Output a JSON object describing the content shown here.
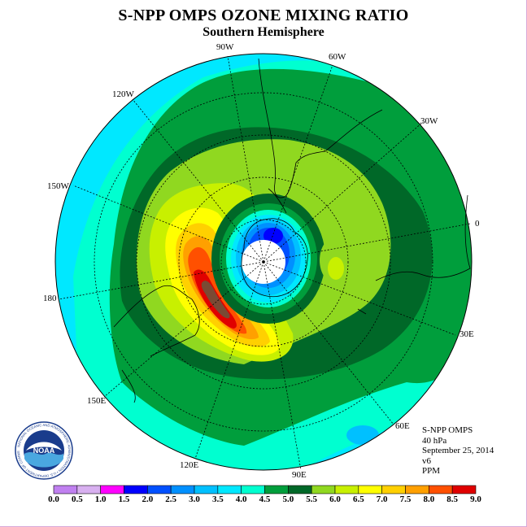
{
  "header": {
    "title": "S-NPP OMPS OZONE MIXING RATIO",
    "subtitle": "Southern Hemisphere"
  },
  "map": {
    "projection": "south-polar-stereographic",
    "longitude_labels": [
      "90W",
      "60W",
      "30W",
      "0",
      "30E",
      "60E",
      "90E",
      "120E",
      "150E",
      "180",
      "150W",
      "120W"
    ],
    "ozone_hole_center": "south-pole",
    "max_region": "south-of-australia"
  },
  "info": {
    "instrument": "S-NPP OMPS",
    "level": "40 hPa",
    "date": "September 25, 2014",
    "version": "v6",
    "units": "PPM"
  },
  "logo": {
    "text": "NOAA",
    "ring_text": "NATIONAL OCEANIC AND ATMOSPHERIC ADMINISTRATION • U.S. DEPARTMENT OF COMMERCE"
  },
  "colorbar": {
    "tick_labels": [
      "0.0",
      "0.5",
      "1.0",
      "1.5",
      "2.0",
      "2.5",
      "3.0",
      "3.5",
      "4.0",
      "4.5",
      "5.0",
      "5.5",
      "6.0",
      "6.5",
      "7.0",
      "7.5",
      "8.0",
      "8.5",
      "9.0"
    ],
    "colors": [
      "#c080f0",
      "#d8b0f0",
      "#ff00ff",
      "#0000ff",
      "#0050ff",
      "#0090ff",
      "#00c0ff",
      "#00e8ff",
      "#00ffd0",
      "#009e3c",
      "#006828",
      "#90d820",
      "#c8f000",
      "#ffff00",
      "#ffd000",
      "#ffa000",
      "#ff5000",
      "#e00000",
      "#7a4a34"
    ]
  }
}
